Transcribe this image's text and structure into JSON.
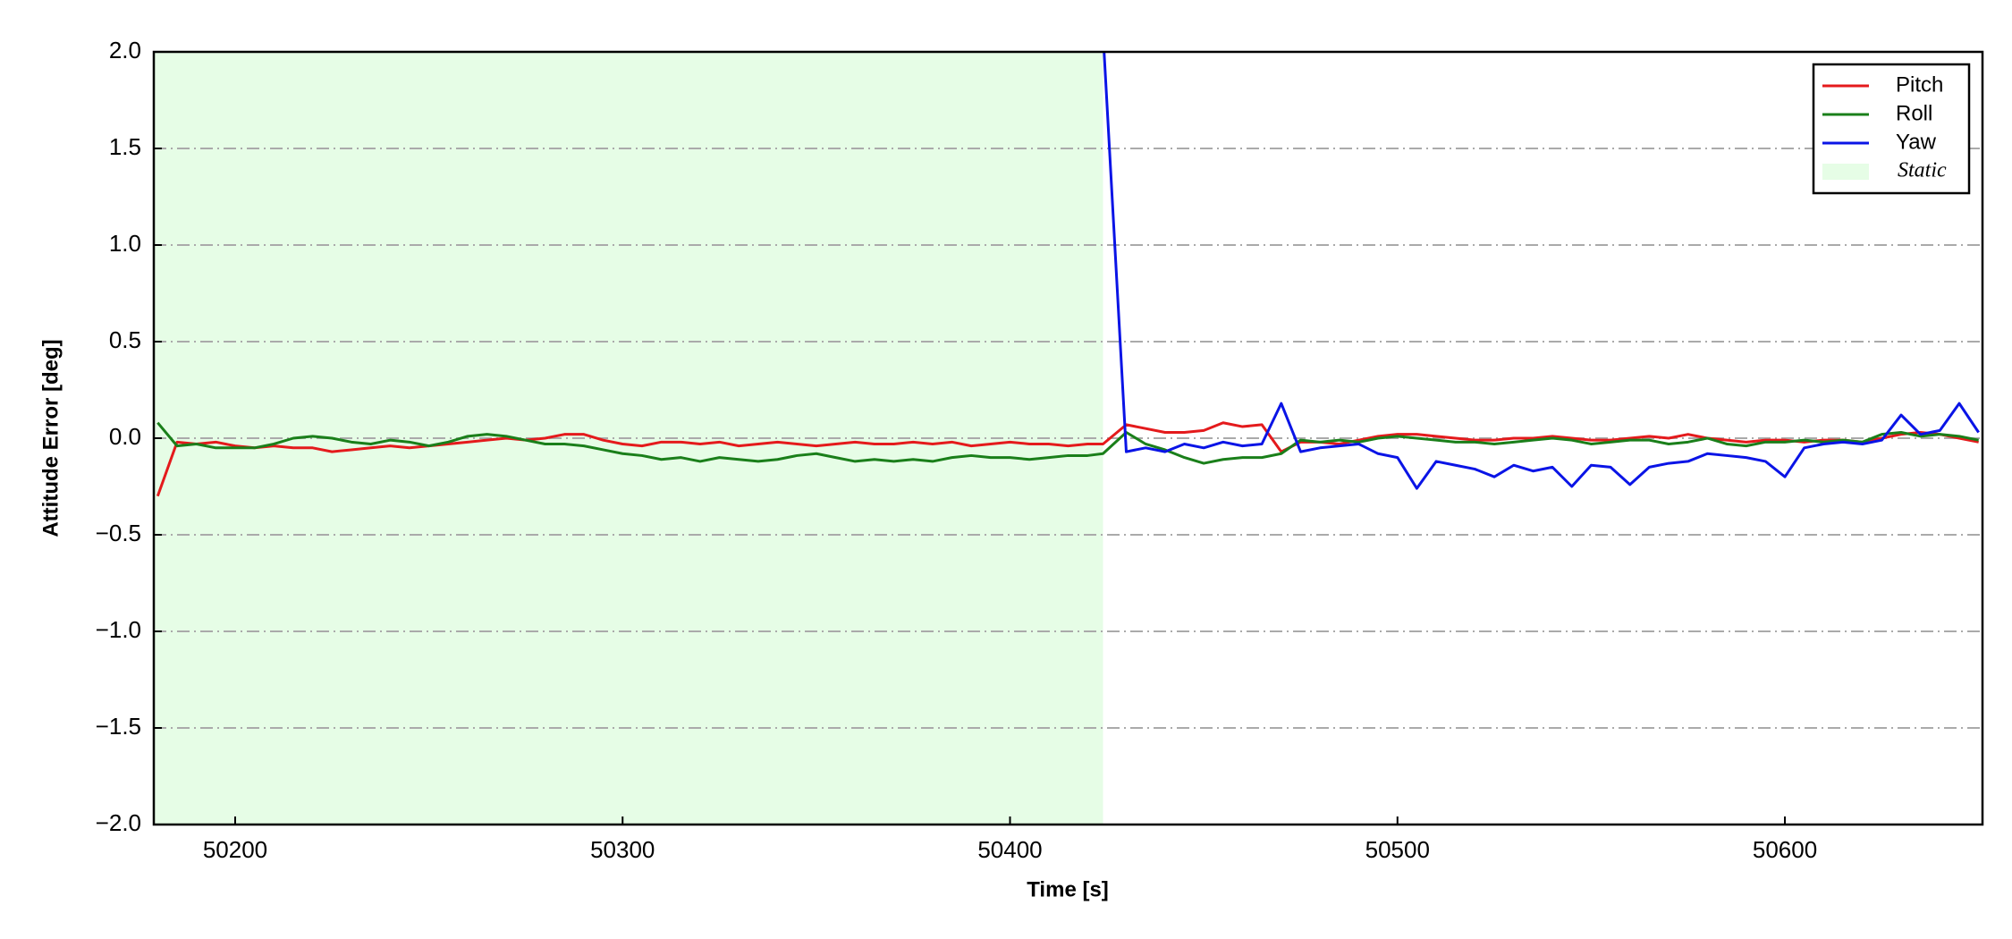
{
  "chart_data": {
    "type": "line",
    "xlabel": "Time [s]",
    "ylabel": "Attitude Error [deg]",
    "x": [
      50180,
      50185,
      50190,
      50195,
      50200,
      50205,
      50210,
      50215,
      50220,
      50225,
      50230,
      50235,
      50240,
      50245,
      50250,
      50255,
      50260,
      50265,
      50270,
      50275,
      50280,
      50285,
      50290,
      50295,
      50300,
      50305,
      50310,
      50315,
      50320,
      50325,
      50330,
      50335,
      50340,
      50345,
      50350,
      50355,
      50360,
      50365,
      50370,
      50375,
      50380,
      50385,
      50390,
      50395,
      50400,
      50405,
      50410,
      50415,
      50420,
      50424,
      50430,
      50435,
      50440,
      50445,
      50450,
      50455,
      50460,
      50465,
      50470,
      50475,
      50480,
      50485,
      50490,
      50495,
      50500,
      50505,
      50510,
      50515,
      50520,
      50525,
      50530,
      50535,
      50540,
      50545,
      50550,
      50555,
      50560,
      50565,
      50570,
      50575,
      50580,
      50585,
      50590,
      50595,
      50600,
      50605,
      50610,
      50615,
      50620,
      50625,
      50630,
      50635,
      50640,
      50645,
      50650
    ],
    "series": [
      {
        "name": "Pitch",
        "color": "#e41a1c",
        "values": [
          -0.3,
          -0.02,
          -0.03,
          -0.02,
          -0.04,
          -0.05,
          -0.04,
          -0.05,
          -0.05,
          -0.07,
          -0.06,
          -0.05,
          -0.04,
          -0.05,
          -0.04,
          -0.03,
          -0.02,
          -0.01,
          0.0,
          -0.01,
          0.0,
          0.02,
          0.02,
          -0.01,
          -0.03,
          -0.04,
          -0.02,
          -0.02,
          -0.03,
          -0.02,
          -0.04,
          -0.03,
          -0.02,
          -0.03,
          -0.04,
          -0.03,
          -0.02,
          -0.03,
          -0.03,
          -0.02,
          -0.03,
          -0.02,
          -0.04,
          -0.03,
          -0.02,
          -0.03,
          -0.03,
          -0.04,
          -0.03,
          -0.03,
          0.07,
          0.05,
          0.03,
          0.03,
          0.04,
          0.08,
          0.06,
          0.07,
          -0.07,
          -0.02,
          -0.02,
          -0.03,
          -0.01,
          0.01,
          0.02,
          0.02,
          0.01,
          0.0,
          -0.01,
          -0.01,
          0.0,
          0.0,
          0.01,
          0.0,
          -0.01,
          -0.01,
          0.0,
          0.01,
          0.0,
          0.02,
          0.0,
          -0.01,
          -0.02,
          -0.01,
          -0.01,
          -0.02,
          -0.01,
          -0.01,
          -0.02,
          0.0,
          0.02,
          0.03,
          0.02,
          0.0,
          -0.02
        ]
      },
      {
        "name": "Roll",
        "color": "#1a7f1a",
        "values": [
          0.08,
          -0.04,
          -0.03,
          -0.05,
          -0.05,
          -0.05,
          -0.03,
          0.0,
          0.01,
          0.0,
          -0.02,
          -0.03,
          -0.01,
          -0.02,
          -0.04,
          -0.02,
          0.01,
          0.02,
          0.01,
          -0.01,
          -0.03,
          -0.03,
          -0.04,
          -0.06,
          -0.08,
          -0.09,
          -0.11,
          -0.1,
          -0.12,
          -0.1,
          -0.11,
          -0.12,
          -0.11,
          -0.09,
          -0.08,
          -0.1,
          -0.12,
          -0.11,
          -0.12,
          -0.11,
          -0.12,
          -0.1,
          -0.09,
          -0.1,
          -0.1,
          -0.11,
          -0.1,
          -0.09,
          -0.09,
          -0.08,
          0.03,
          -0.03,
          -0.06,
          -0.1,
          -0.13,
          -0.11,
          -0.1,
          -0.1,
          -0.08,
          -0.01,
          -0.02,
          -0.01,
          -0.02,
          0.0,
          0.01,
          0.0,
          -0.01,
          -0.02,
          -0.02,
          -0.03,
          -0.02,
          -0.01,
          0.0,
          -0.01,
          -0.03,
          -0.02,
          -0.01,
          -0.01,
          -0.03,
          -0.02,
          0.0,
          -0.03,
          -0.04,
          -0.02,
          -0.02,
          -0.01,
          -0.02,
          -0.01,
          -0.02,
          0.02,
          0.03,
          0.01,
          0.02,
          0.01,
          -0.01
        ]
      },
      {
        "name": "Yaw",
        "color": "#0a14e6",
        "values": [
          null,
          null,
          null,
          null,
          null,
          null,
          null,
          null,
          null,
          null,
          null,
          null,
          null,
          null,
          null,
          null,
          null,
          null,
          null,
          null,
          null,
          null,
          null,
          null,
          null,
          null,
          null,
          null,
          null,
          null,
          null,
          null,
          null,
          null,
          null,
          null,
          null,
          null,
          null,
          null,
          null,
          null,
          null,
          null,
          null,
          null,
          null,
          null,
          null,
          2.1,
          -0.07,
          -0.05,
          -0.07,
          -0.03,
          -0.05,
          -0.02,
          -0.04,
          -0.03,
          0.18,
          -0.07,
          -0.05,
          -0.04,
          -0.03,
          -0.08,
          -0.1,
          -0.26,
          -0.12,
          -0.14,
          -0.16,
          -0.2,
          -0.14,
          -0.17,
          -0.15,
          -0.25,
          -0.14,
          -0.15,
          -0.24,
          -0.15,
          -0.13,
          -0.12,
          -0.08,
          -0.09,
          -0.1,
          -0.12,
          -0.2,
          -0.05,
          -0.03,
          -0.02,
          -0.03,
          -0.01,
          0.12,
          0.02,
          0.04,
          0.18,
          0.03
        ]
      }
    ],
    "spans": [
      {
        "name": "Static",
        "x0": 50179,
        "x1": 50424,
        "color": "#e6fde6"
      }
    ],
    "xlim": [
      50179,
      50651
    ],
    "xticks": [
      50200,
      50300,
      50400,
      50500,
      50600
    ],
    "ylim": [
      -2.0,
      2.0
    ],
    "yticks": [
      {
        "value": -2.0,
        "label": "−2.0"
      },
      {
        "value": -1.5,
        "label": "−1.5"
      },
      {
        "value": -1.0,
        "label": "−1.0"
      },
      {
        "value": -0.5,
        "label": "−0.5"
      },
      {
        "value": 0.0,
        "label": "0.0"
      },
      {
        "value": 0.5,
        "label": "0.5"
      },
      {
        "value": 1.0,
        "label": "1.0"
      },
      {
        "value": 1.5,
        "label": "1.5"
      },
      {
        "value": 2.0,
        "label": "2.0"
      }
    ],
    "grid": true,
    "legend": "upper right"
  }
}
